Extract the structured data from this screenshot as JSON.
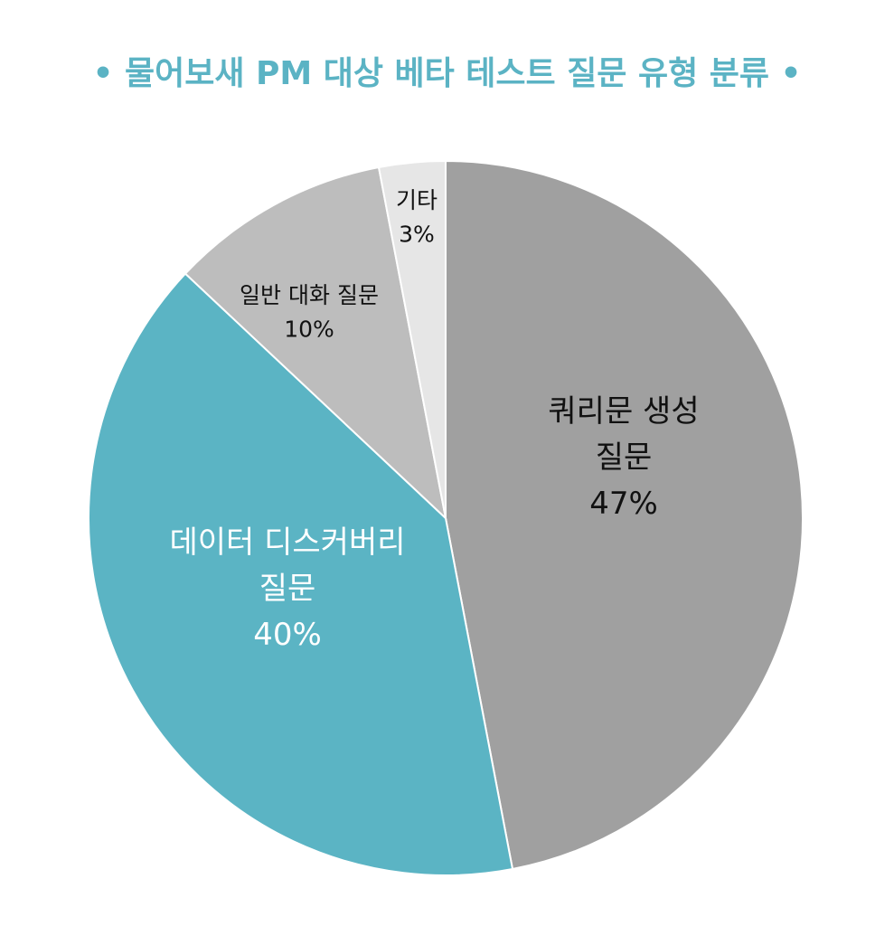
{
  "chart_data": {
    "type": "pie",
    "title": "• 물어보새 PM 대상 베타 테스트 질문 유형 분류 •",
    "slices": [
      {
        "label_lines": [
          "쿼리문 생성",
          "질문"
        ],
        "percent_label": "47%",
        "value": 47,
        "color": "#a0a0a0",
        "text_color": "#111111",
        "label_size": 34
      },
      {
        "label_lines": [
          "데이터 디스커버리",
          "질문"
        ],
        "percent_label": "40%",
        "value": 40,
        "color": "#5bb4c4",
        "text_color": "#ffffff",
        "label_size": 34
      },
      {
        "label_lines": [
          "일반 대화 질문"
        ],
        "percent_label": "10%",
        "value": 10,
        "color": "#bdbdbd",
        "text_color": "#111111",
        "label_size": 25
      },
      {
        "label_lines": [
          "기타"
        ],
        "percent_label": "3%",
        "value": 3,
        "color": "#e6e6e6",
        "text_color": "#111111",
        "label_size": 25
      }
    ],
    "start_angle_deg": 0,
    "direction": "clockwise",
    "legend": "none"
  }
}
